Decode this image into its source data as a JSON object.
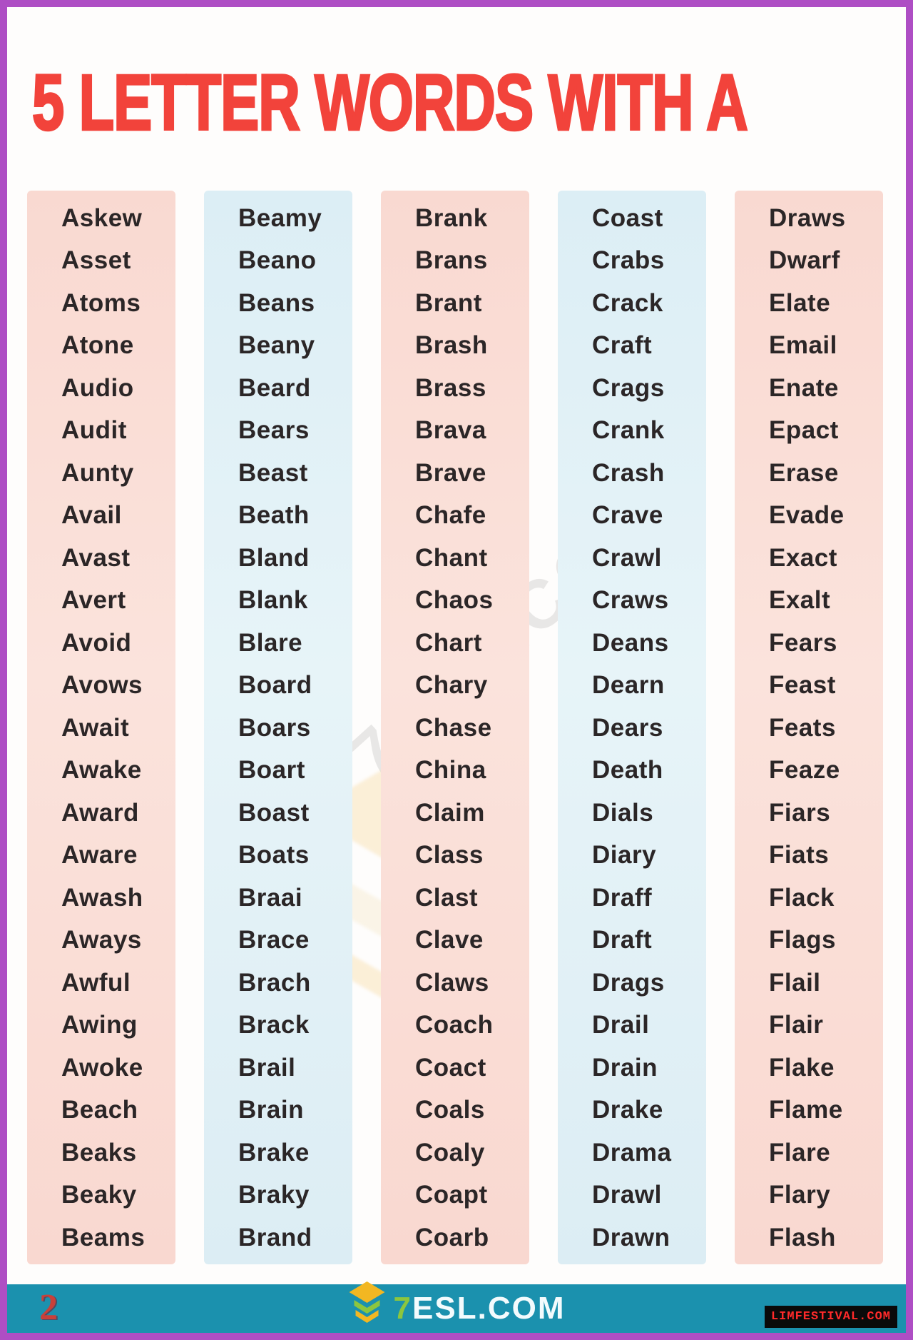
{
  "page": {
    "title": "5 LETTER WORDS WITH A",
    "page_number": "2",
    "watermark_text": "7ESL.COM",
    "footer": {
      "brand_seven": "7",
      "brand_rest": "ESL.COM",
      "badge": "LIMFESTIVAL.COM",
      "logo_icon": "graduation-cap-icon"
    },
    "colors": {
      "border": "#ae4ec4",
      "title": "#f2433b",
      "footer": "#1b91ae",
      "gold": "#f2b722",
      "green": "#8cc63e",
      "badgeBg": "#0a0a0a",
      "badgeText": "#ff2a2a",
      "word": "#2b2627",
      "pagenum": "#c8403a"
    }
  },
  "columns": [
    {
      "tone": "pink",
      "words": [
        "Askew",
        "Asset",
        "Atoms",
        "Atone",
        "Audio",
        "Audit",
        "Aunty",
        "Avail",
        "Avast",
        "Avert",
        "Avoid",
        "Avows",
        "Await",
        "Awake",
        "Award",
        "Aware",
        "Awash",
        "Aways",
        "Awful",
        "Awing",
        "Awoke",
        "Beach",
        "Beaks",
        "Beaky",
        "Beams"
      ]
    },
    {
      "tone": "blue",
      "words": [
        "Beamy",
        "Beano",
        "Beans",
        "Beany",
        "Beard",
        "Bears",
        "Beast",
        "Beath",
        "Bland",
        "Blank",
        "Blare",
        "Board",
        "Boars",
        "Boart",
        "Boast",
        "Boats",
        "Braai",
        "Brace",
        "Brach",
        "Brack",
        "Brail",
        "Brain",
        "Brake",
        "Braky",
        "Brand"
      ]
    },
    {
      "tone": "pink",
      "words": [
        "Brank",
        "Brans",
        "Brant",
        "Brash",
        "Brass",
        "Brava",
        "Brave",
        "Chafe",
        "Chant",
        "Chaos",
        "Chart",
        "Chary",
        "Chase",
        "China",
        "Claim",
        "Class",
        "Clast",
        "Clave",
        "Claws",
        "Coach",
        "Coact",
        "Coals",
        "Coaly",
        "Coapt",
        "Coarb"
      ]
    },
    {
      "tone": "blue",
      "words": [
        "Coast",
        "Crabs",
        "Crack",
        "Craft",
        "Crags",
        "Crank",
        "Crash",
        "Crave",
        "Crawl",
        "Craws",
        "Deans",
        "Dearn",
        "Dears",
        "Death",
        "Dials",
        "Diary",
        "Draff",
        "Draft",
        "Drags",
        "Drail",
        "Drain",
        "Drake",
        "Drama",
        "Drawl",
        "Drawn"
      ]
    },
    {
      "tone": "pink",
      "words": [
        "Draws",
        "Dwarf",
        "Elate",
        "Email",
        "Enate",
        "Epact",
        "Erase",
        "Evade",
        "Exact",
        "Exalt",
        "Fears",
        "Feast",
        "Feats",
        "Feaze",
        "Fiars",
        "Fiats",
        "Flack",
        "Flags",
        "Flail",
        "Flair",
        "Flake",
        "Flame",
        "Flare",
        "Flary",
        "Flash"
      ]
    }
  ]
}
